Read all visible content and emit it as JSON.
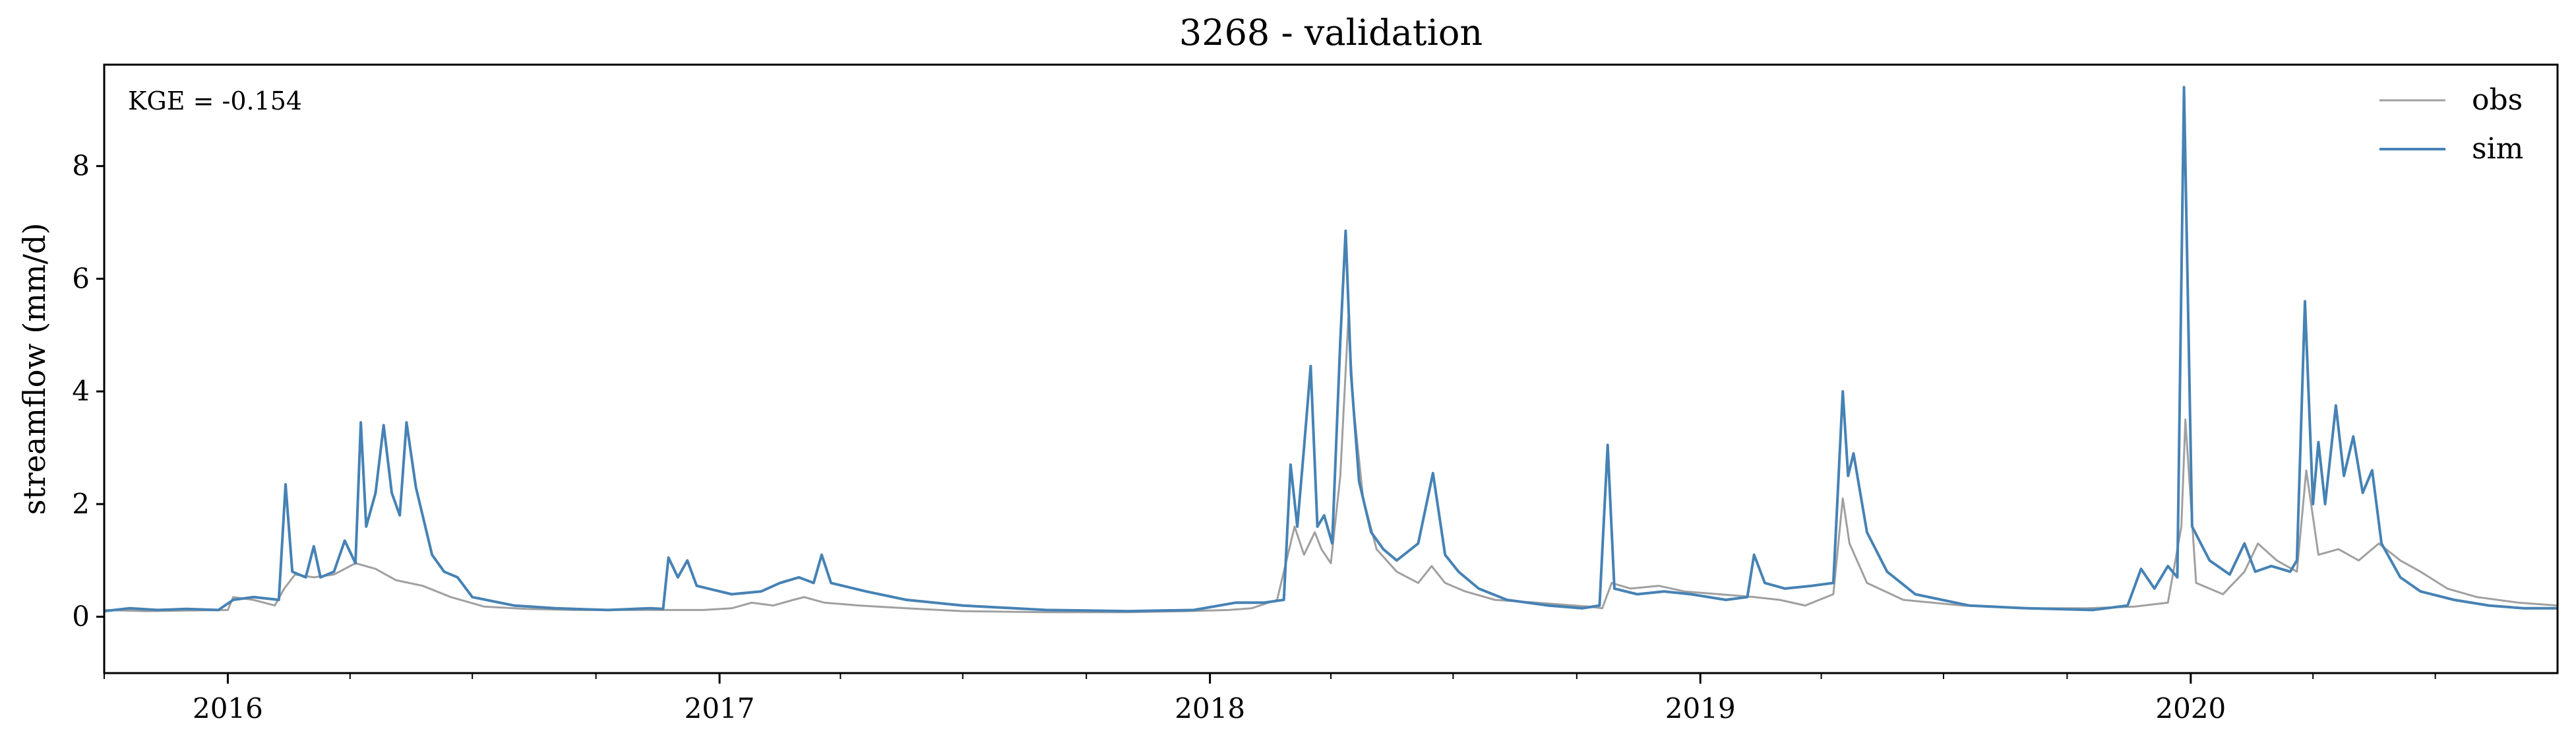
{
  "chart_data": {
    "type": "line",
    "title": "3268 - validation",
    "xlabel": "",
    "ylabel": "streamflow (mm/d)",
    "annotation": "KGE = -0.154",
    "legend_position": "top-right",
    "grid": false,
    "x_range": [
      "2015-10-01",
      "2020-09-30"
    ],
    "ylim": [
      -1,
      9.8
    ],
    "y_ticks": [
      0,
      2,
      4,
      6,
      8
    ],
    "x_tick_labels": [
      "2016",
      "2017",
      "2018",
      "2019",
      "2020"
    ],
    "x_tick_dates": [
      "2016-01-01",
      "2017-01-01",
      "2018-01-01",
      "2019-01-01",
      "2020-01-01"
    ],
    "series": [
      {
        "name": "obs",
        "color": "#a0a0a0",
        "points": [
          [
            "2015-10-01",
            0.12
          ],
          [
            "2015-11-01",
            0.1
          ],
          [
            "2015-12-01",
            0.11
          ],
          [
            "2016-01-01",
            0.12
          ],
          [
            "2016-01-05",
            0.35
          ],
          [
            "2016-01-20",
            0.3
          ],
          [
            "2016-02-05",
            0.2
          ],
          [
            "2016-02-12",
            0.5
          ],
          [
            "2016-02-20",
            0.75
          ],
          [
            "2016-03-05",
            0.7
          ],
          [
            "2016-03-20",
            0.75
          ],
          [
            "2016-04-05",
            0.95
          ],
          [
            "2016-04-20",
            0.85
          ],
          [
            "2016-05-05",
            0.65
          ],
          [
            "2016-05-25",
            0.55
          ],
          [
            "2016-06-15",
            0.35
          ],
          [
            "2016-07-10",
            0.18
          ],
          [
            "2016-08-10",
            0.14
          ],
          [
            "2016-09-15",
            0.12
          ],
          [
            "2016-10-20",
            0.12
          ],
          [
            "2016-11-20",
            0.12
          ],
          [
            "2016-12-20",
            0.12
          ],
          [
            "2017-01-10",
            0.15
          ],
          [
            "2017-01-25",
            0.25
          ],
          [
            "2017-02-10",
            0.2
          ],
          [
            "2017-02-25",
            0.3
          ],
          [
            "2017-03-05",
            0.35
          ],
          [
            "2017-03-20",
            0.25
          ],
          [
            "2017-04-15",
            0.2
          ],
          [
            "2017-05-20",
            0.15
          ],
          [
            "2017-07-01",
            0.1
          ],
          [
            "2017-09-01",
            0.08
          ],
          [
            "2017-11-01",
            0.08
          ],
          [
            "2017-12-15",
            0.1
          ],
          [
            "2018-01-15",
            0.12
          ],
          [
            "2018-02-01",
            0.15
          ],
          [
            "2018-02-20",
            0.3
          ],
          [
            "2018-03-01",
            1.2
          ],
          [
            "2018-03-05",
            1.6
          ],
          [
            "2018-03-12",
            1.1
          ],
          [
            "2018-03-20",
            1.5
          ],
          [
            "2018-03-25",
            1.2
          ],
          [
            "2018-04-01",
            0.95
          ],
          [
            "2018-04-08",
            2.5
          ],
          [
            "2018-04-14",
            5.3
          ],
          [
            "2018-04-18",
            3.7
          ],
          [
            "2018-04-25",
            2.1
          ],
          [
            "2018-05-05",
            1.2
          ],
          [
            "2018-05-20",
            0.8
          ],
          [
            "2018-06-05",
            0.6
          ],
          [
            "2018-06-15",
            0.9
          ],
          [
            "2018-06-25",
            0.6
          ],
          [
            "2018-07-10",
            0.45
          ],
          [
            "2018-08-01",
            0.3
          ],
          [
            "2018-09-01",
            0.25
          ],
          [
            "2018-10-10",
            0.18
          ],
          [
            "2018-10-20",
            0.15
          ],
          [
            "2018-10-27",
            0.6
          ],
          [
            "2018-11-10",
            0.5
          ],
          [
            "2018-12-01",
            0.55
          ],
          [
            "2018-12-20",
            0.45
          ],
          [
            "2019-01-15",
            0.4
          ],
          [
            "2019-02-10",
            0.35
          ],
          [
            "2019-03-01",
            0.3
          ],
          [
            "2019-03-20",
            0.2
          ],
          [
            "2019-04-10",
            0.4
          ],
          [
            "2019-04-17",
            2.1
          ],
          [
            "2019-04-22",
            1.3
          ],
          [
            "2019-05-05",
            0.6
          ],
          [
            "2019-06-01",
            0.3
          ],
          [
            "2019-07-15",
            0.2
          ],
          [
            "2019-09-01",
            0.15
          ],
          [
            "2019-10-15",
            0.15
          ],
          [
            "2019-11-20",
            0.18
          ],
          [
            "2019-12-15",
            0.25
          ],
          [
            "2019-12-25",
            1.6
          ],
          [
            "2019-12-28",
            3.5
          ],
          [
            "2020-01-05",
            0.6
          ],
          [
            "2020-01-25",
            0.4
          ],
          [
            "2020-02-10",
            0.8
          ],
          [
            "2020-02-20",
            1.3
          ],
          [
            "2020-03-05",
            1.0
          ],
          [
            "2020-03-20",
            0.8
          ],
          [
            "2020-03-27",
            2.6
          ],
          [
            "2020-04-05",
            1.1
          ],
          [
            "2020-04-20",
            1.2
          ],
          [
            "2020-05-05",
            1.0
          ],
          [
            "2020-05-20",
            1.3
          ],
          [
            "2020-06-05",
            1.0
          ],
          [
            "2020-06-20",
            0.8
          ],
          [
            "2020-07-10",
            0.5
          ],
          [
            "2020-08-01",
            0.35
          ],
          [
            "2020-09-01",
            0.25
          ],
          [
            "2020-09-30",
            0.2
          ]
        ]
      },
      {
        "name": "sim",
        "color": "#4682b4",
        "points": [
          [
            "2015-10-01",
            0.1
          ],
          [
            "2015-10-20",
            0.15
          ],
          [
            "2015-11-10",
            0.12
          ],
          [
            "2015-12-01",
            0.14
          ],
          [
            "2015-12-25",
            0.12
          ],
          [
            "2016-01-05",
            0.3
          ],
          [
            "2016-01-20",
            0.35
          ],
          [
            "2016-02-08",
            0.3
          ],
          [
            "2016-02-13",
            2.35
          ],
          [
            "2016-02-18",
            0.8
          ],
          [
            "2016-02-28",
            0.7
          ],
          [
            "2016-03-05",
            1.25
          ],
          [
            "2016-03-10",
            0.7
          ],
          [
            "2016-03-20",
            0.8
          ],
          [
            "2016-03-28",
            1.35
          ],
          [
            "2016-04-05",
            0.95
          ],
          [
            "2016-04-09",
            3.45
          ],
          [
            "2016-04-13",
            1.6
          ],
          [
            "2016-04-20",
            2.2
          ],
          [
            "2016-04-26",
            3.4
          ],
          [
            "2016-05-02",
            2.2
          ],
          [
            "2016-05-08",
            1.8
          ],
          [
            "2016-05-13",
            3.45
          ],
          [
            "2016-05-20",
            2.3
          ],
          [
            "2016-06-01",
            1.1
          ],
          [
            "2016-06-10",
            0.8
          ],
          [
            "2016-06-20",
            0.7
          ],
          [
            "2016-07-01",
            0.35
          ],
          [
            "2016-08-01",
            0.2
          ],
          [
            "2016-09-01",
            0.15
          ],
          [
            "2016-10-10",
            0.12
          ],
          [
            "2016-11-10",
            0.15
          ],
          [
            "2016-11-20",
            0.14
          ],
          [
            "2016-11-24",
            1.05
          ],
          [
            "2016-12-01",
            0.7
          ],
          [
            "2016-12-08",
            1.0
          ],
          [
            "2016-12-15",
            0.55
          ],
          [
            "2017-01-10",
            0.4
          ],
          [
            "2017-02-01",
            0.45
          ],
          [
            "2017-02-15",
            0.6
          ],
          [
            "2017-03-01",
            0.7
          ],
          [
            "2017-03-12",
            0.6
          ],
          [
            "2017-03-18",
            1.1
          ],
          [
            "2017-03-25",
            0.6
          ],
          [
            "2017-04-20",
            0.45
          ],
          [
            "2017-05-20",
            0.3
          ],
          [
            "2017-07-01",
            0.2
          ],
          [
            "2017-09-01",
            0.12
          ],
          [
            "2017-11-01",
            0.1
          ],
          [
            "2017-12-20",
            0.12
          ],
          [
            "2018-01-20",
            0.25
          ],
          [
            "2018-02-10",
            0.25
          ],
          [
            "2018-02-25",
            0.3
          ],
          [
            "2018-03-02",
            2.7
          ],
          [
            "2018-03-07",
            1.6
          ],
          [
            "2018-03-12",
            3.0
          ],
          [
            "2018-03-17",
            4.45
          ],
          [
            "2018-03-22",
            1.6
          ],
          [
            "2018-03-27",
            1.8
          ],
          [
            "2018-04-02",
            1.3
          ],
          [
            "2018-04-08",
            4.9
          ],
          [
            "2018-04-12",
            6.85
          ],
          [
            "2018-04-16",
            4.3
          ],
          [
            "2018-04-22",
            2.4
          ],
          [
            "2018-05-01",
            1.5
          ],
          [
            "2018-05-10",
            1.2
          ],
          [
            "2018-05-20",
            1.0
          ],
          [
            "2018-06-05",
            1.3
          ],
          [
            "2018-06-16",
            2.55
          ],
          [
            "2018-06-25",
            1.1
          ],
          [
            "2018-07-05",
            0.8
          ],
          [
            "2018-07-20",
            0.5
          ],
          [
            "2018-08-10",
            0.3
          ],
          [
            "2018-09-10",
            0.2
          ],
          [
            "2018-10-05",
            0.15
          ],
          [
            "2018-10-18",
            0.2
          ],
          [
            "2018-10-24",
            3.05
          ],
          [
            "2018-10-29",
            0.5
          ],
          [
            "2018-11-15",
            0.4
          ],
          [
            "2018-12-05",
            0.45
          ],
          [
            "2018-12-25",
            0.4
          ],
          [
            "2019-01-20",
            0.3
          ],
          [
            "2019-02-05",
            0.35
          ],
          [
            "2019-02-10",
            1.1
          ],
          [
            "2019-02-18",
            0.6
          ],
          [
            "2019-03-05",
            0.5
          ],
          [
            "2019-03-25",
            0.55
          ],
          [
            "2019-04-10",
            0.6
          ],
          [
            "2019-04-17",
            4.0
          ],
          [
            "2019-04-21",
            2.5
          ],
          [
            "2019-04-25",
            2.9
          ],
          [
            "2019-05-05",
            1.5
          ],
          [
            "2019-05-20",
            0.8
          ],
          [
            "2019-06-10",
            0.4
          ],
          [
            "2019-07-20",
            0.2
          ],
          [
            "2019-09-01",
            0.15
          ],
          [
            "2019-10-20",
            0.12
          ],
          [
            "2019-11-15",
            0.2
          ],
          [
            "2019-11-25",
            0.85
          ],
          [
            "2019-12-05",
            0.5
          ],
          [
            "2019-12-15",
            0.9
          ],
          [
            "2019-12-22",
            0.7
          ],
          [
            "2019-12-27",
            9.4
          ],
          [
            "2020-01-02",
            1.6
          ],
          [
            "2020-01-15",
            1.0
          ],
          [
            "2020-01-30",
            0.75
          ],
          [
            "2020-02-10",
            1.3
          ],
          [
            "2020-02-18",
            0.8
          ],
          [
            "2020-03-01",
            0.9
          ],
          [
            "2020-03-15",
            0.8
          ],
          [
            "2020-03-20",
            1.0
          ],
          [
            "2020-03-26",
            5.6
          ],
          [
            "2020-04-01",
            2.0
          ],
          [
            "2020-04-05",
            3.1
          ],
          [
            "2020-04-10",
            2.0
          ],
          [
            "2020-04-18",
            3.75
          ],
          [
            "2020-04-24",
            2.5
          ],
          [
            "2020-05-01",
            3.2
          ],
          [
            "2020-05-08",
            2.2
          ],
          [
            "2020-05-15",
            2.6
          ],
          [
            "2020-05-22",
            1.3
          ],
          [
            "2020-06-05",
            0.7
          ],
          [
            "2020-06-20",
            0.45
          ],
          [
            "2020-07-15",
            0.3
          ],
          [
            "2020-08-10",
            0.2
          ],
          [
            "2020-09-05",
            0.15
          ],
          [
            "2020-09-30",
            0.15
          ]
        ]
      }
    ]
  }
}
